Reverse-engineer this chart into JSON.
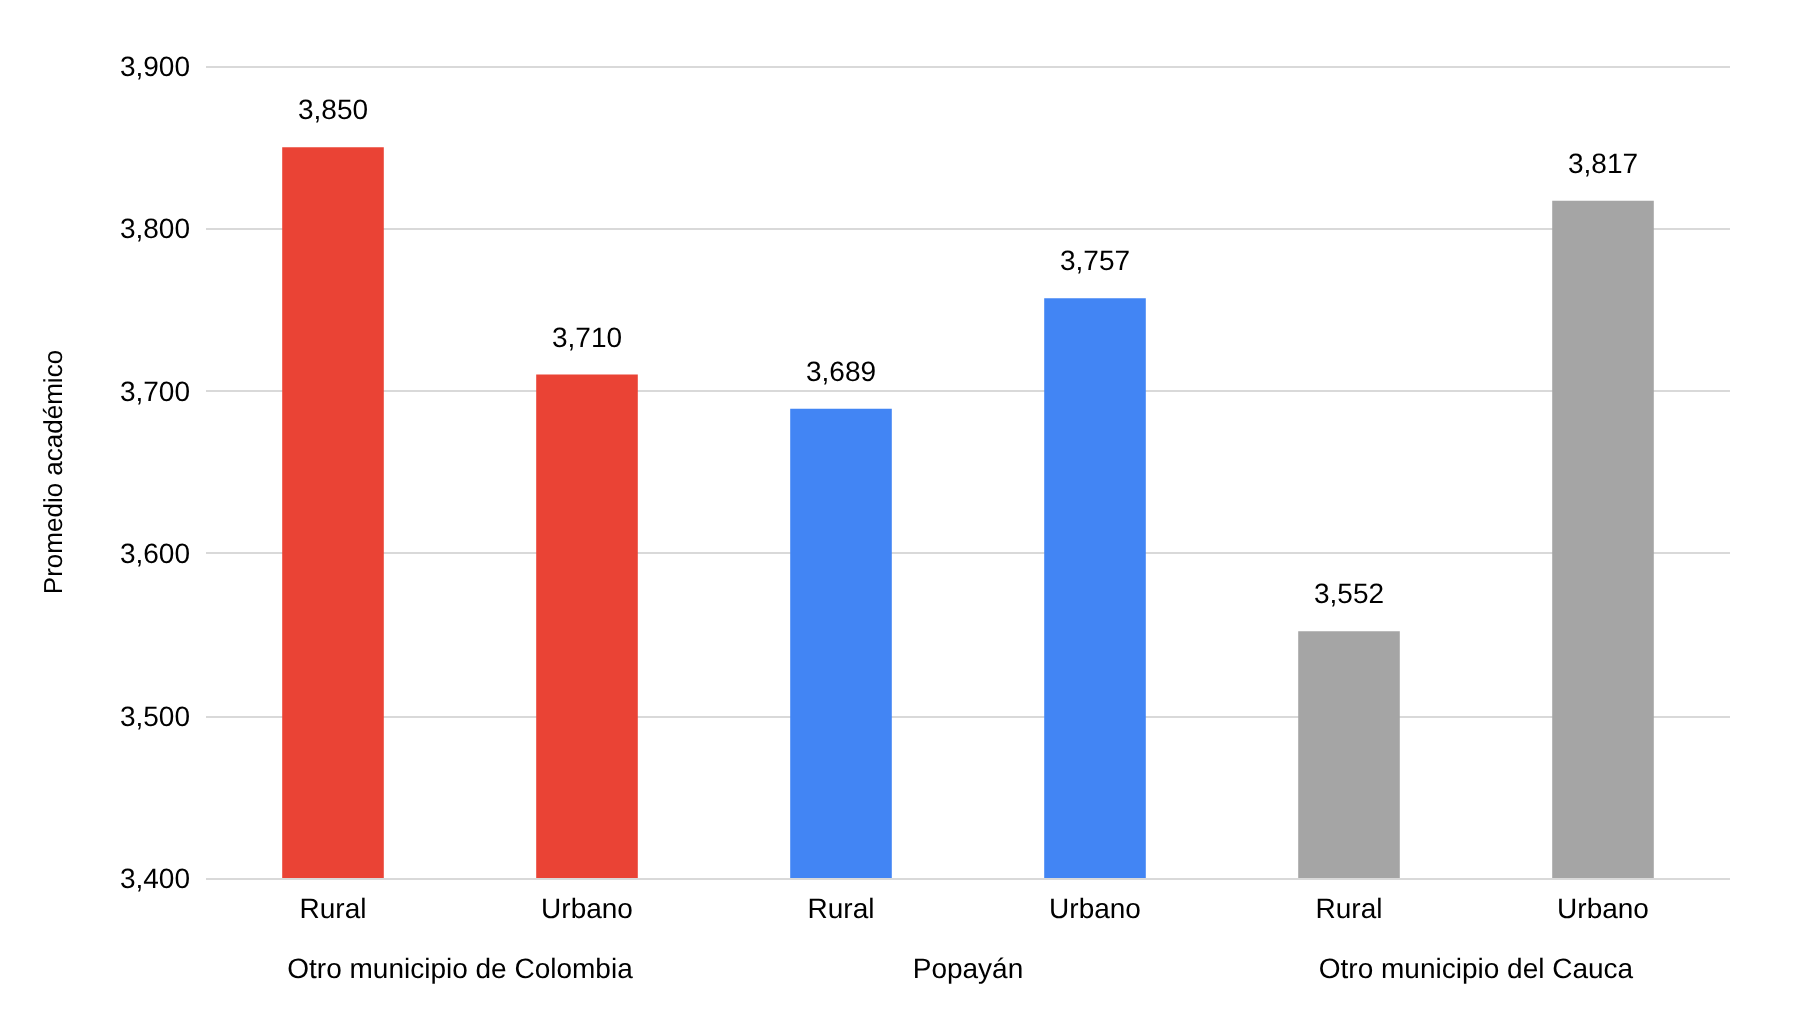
{
  "chart_data": {
    "type": "bar",
    "ylabel": "Promedio académico",
    "categories": [
      "Rural",
      "Urbano",
      "Rural",
      "Urbano",
      "Rural",
      "Urbano"
    ],
    "values": [
      3850,
      3710,
      3689,
      3757,
      3552,
      3817
    ],
    "value_labels": [
      "3,850",
      "3,710",
      "3,689",
      "3,757",
      "3,552",
      "3,817"
    ],
    "colors": [
      "#ea4335",
      "#ea4335",
      "#4285f4",
      "#4285f4",
      "#a5a5a5",
      "#a5a5a5"
    ],
    "annotations": [
      "Otro municipio de Colombia",
      "Popayán",
      "Otro municipio del Cauca"
    ],
    "ylim": [
      3400,
      3900
    ],
    "yticks": [
      {
        "value": 3400,
        "label": "3,400"
      },
      {
        "value": 3500,
        "label": "3,500"
      },
      {
        "value": 3600,
        "label": "3,600"
      },
      {
        "value": 3700,
        "label": "3,700"
      },
      {
        "value": 3800,
        "label": "3,800"
      },
      {
        "value": 3900,
        "label": "3,900"
      }
    ],
    "grid": "y"
  }
}
